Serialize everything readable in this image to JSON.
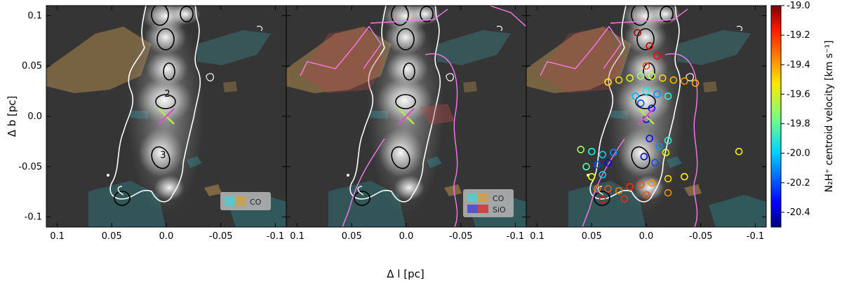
{
  "chart_data": {
    "type": "heatmap",
    "xlabel": "Δ l [pc]",
    "ylabel": "Δ b [pc]",
    "xlim": [
      0.11,
      -0.11
    ],
    "ylim": [
      -0.11,
      0.11
    ],
    "xticks": [
      0.1,
      0.05,
      0.0,
      -0.05,
      -0.1
    ],
    "xtick_labels": [
      "0.1",
      "0.05",
      "0.0",
      "-0.05",
      "-0.1"
    ],
    "yticks": [
      0.1,
      0.05,
      0.0,
      -0.05,
      -0.1
    ],
    "ytick_labels": [
      "0.1",
      "0.05",
      "0.0",
      "-0.05",
      "-0.1"
    ],
    "panels": [
      {
        "legend": [
          {
            "label": "CO",
            "colors": [
              "#5ec6c6",
              "#c8a05a"
            ]
          }
        ]
      },
      {
        "legend": [
          {
            "label": "CO",
            "colors": [
              "#5ec6c6",
              "#c8a05a"
            ]
          },
          {
            "label": "SiO",
            "colors": [
              "#5555cc",
              "#cc4444"
            ]
          }
        ]
      },
      {
        "legend": []
      }
    ],
    "cores": [
      {
        "label": "2",
        "x": -0.001,
        "y": 0.023
      },
      {
        "label": "3",
        "x": 0.003,
        "y": -0.038
      }
    ],
    "marker": {
      "symbol": "x",
      "x": 0.0,
      "y": 0.0,
      "colors": [
        "#b6e84a",
        "#d653c8"
      ]
    },
    "colorbar": {
      "label": "N₂H⁺ centroid velocity [km s⁻¹]",
      "min": -20.5,
      "max": -19.0,
      "ticks": [
        -19.0,
        -19.2,
        -19.4,
        -19.6,
        -19.8,
        -20.0,
        -20.2,
        -20.4
      ],
      "tick_labels": [
        "-19.0",
        "-19.2",
        "-19.4",
        "-19.6",
        "-19.8",
        "-20.0",
        "-20.2",
        "-20.4"
      ],
      "colormap": "jet"
    },
    "series": [
      {
        "type": "scatter",
        "marker": "open-circle",
        "value_key": "v",
        "x": [
          0.005,
          0.015,
          0.025,
          0.035,
          -0.005,
          -0.015,
          -0.025,
          -0.035,
          -0.045,
          0.0,
          0.01,
          -0.01,
          -0.02,
          0.005,
          -0.005,
          0.0,
          0.06,
          0.05,
          0.04,
          0.03,
          0.055,
          0.045,
          0.035,
          0.05,
          0.04,
          -0.003,
          -0.012,
          -0.02,
          0.002,
          -0.008,
          -0.018,
          0.045,
          0.035,
          0.025,
          0.015,
          0.005,
          -0.005,
          -0.02,
          -0.035,
          0.04,
          0.02,
          0.0,
          -0.02,
          0.008,
          -0.003,
          -0.01,
          0.0,
          -0.085
        ],
        "y": [
          0.04,
          0.038,
          0.036,
          0.034,
          0.04,
          0.038,
          0.036,
          0.035,
          0.033,
          0.025,
          0.02,
          0.022,
          0.02,
          0.013,
          0.008,
          -0.003,
          -0.033,
          -0.035,
          -0.038,
          -0.036,
          -0.05,
          -0.048,
          -0.046,
          -0.06,
          -0.058,
          -0.022,
          -0.03,
          -0.024,
          -0.04,
          -0.046,
          -0.036,
          -0.072,
          -0.072,
          -0.074,
          -0.07,
          -0.068,
          -0.066,
          -0.062,
          -0.06,
          -0.083,
          -0.082,
          -0.078,
          -0.076,
          0.083,
          0.07,
          0.06,
          0.05,
          -0.035
        ],
        "v": [
          -19.7,
          -19.6,
          -19.5,
          -19.55,
          -19.65,
          -19.5,
          -19.45,
          -19.4,
          -19.45,
          -19.95,
          -20.05,
          -20.1,
          -19.9,
          -20.2,
          -20.3,
          -20.35,
          -19.7,
          -19.9,
          -20.0,
          -20.1,
          -19.8,
          -20.2,
          -20.3,
          -19.6,
          -20.0,
          -20.3,
          -20.1,
          -19.9,
          -20.4,
          -20.2,
          -19.6,
          -19.35,
          -19.3,
          -19.35,
          -19.25,
          -19.3,
          -19.4,
          -19.5,
          -19.55,
          -19.2,
          -19.25,
          -19.3,
          -19.4,
          -19.05,
          -19.1,
          -19.2,
          -19.3,
          -19.55
        ]
      }
    ]
  }
}
